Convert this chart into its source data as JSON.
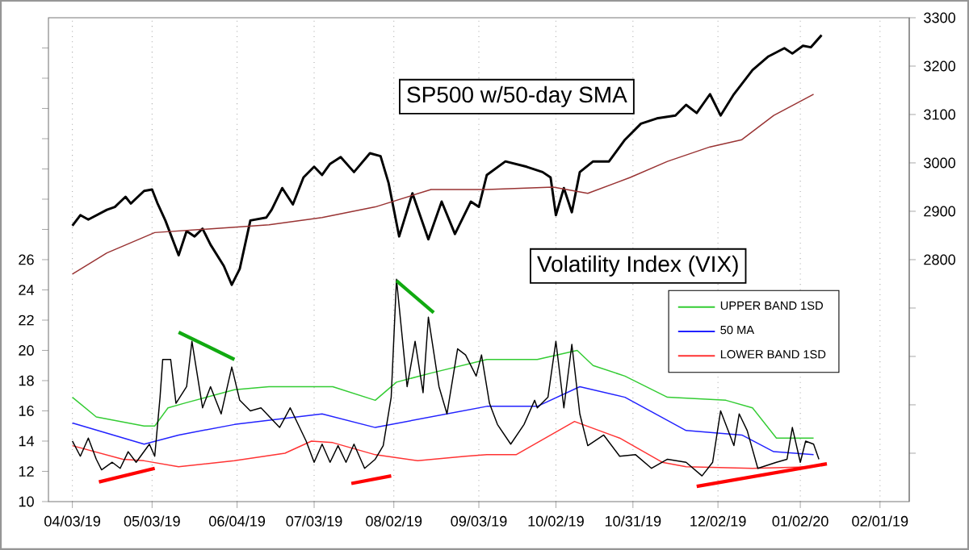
{
  "chart_data": {
    "type": "line",
    "title": "SP500 w/50-day SMA",
    "annotations": [
      "Volatility Index (VIX)"
    ],
    "xlim": [
      "2019-03-25",
      "2020-02-12"
    ],
    "xticks": [
      {
        "value": "2019-04-03",
        "label": "04/03/19"
      },
      {
        "value": "2019-05-03",
        "label": "05/03/19"
      },
      {
        "value": "2019-06-04",
        "label": "06/04/19"
      },
      {
        "value": "2019-07-03",
        "label": "07/03/19"
      },
      {
        "value": "2019-08-02",
        "label": "08/02/19"
      },
      {
        "value": "2019-09-03",
        "label": "09/03/19"
      },
      {
        "value": "2019-10-02",
        "label": "10/02/19"
      },
      {
        "value": "2019-10-31",
        "label": "10/31/19"
      },
      {
        "value": "2019-12-02",
        "label": "12/02/19"
      },
      {
        "value": "2020-01-02",
        "label": "01/02/20"
      },
      {
        "value": "2020-02-01",
        "label": "02/01/19"
      }
    ],
    "ylim": [
      10,
      42
    ],
    "yticks": [
      10,
      12,
      14,
      16,
      18,
      20,
      22,
      24,
      26,
      {
        "value": 28,
        "label": null
      },
      {
        "value": 30,
        "label": null
      },
      {
        "value": 32,
        "label": null
      },
      {
        "value": 34,
        "label": null
      },
      {
        "value": 36,
        "label": null
      },
      {
        "value": 38,
        "label": null
      },
      {
        "value": 40,
        "label": null
      }
    ],
    "y2lim": [
      2300,
      3300
    ],
    "y2ticks": [
      {
        "value": 2400,
        "label": null
      },
      {
        "value": 2500,
        "label": null
      },
      {
        "value": 2600,
        "label": null
      },
      {
        "value": 2700,
        "label": null
      },
      2800,
      2900,
      3000,
      3100,
      3200,
      3300
    ],
    "grid": "x",
    "legend": "right",
    "marker": "none",
    "line_style": "solid",
    "series": [
      {
        "name": "UPPER BAND 1SD",
        "color": "#33cc33",
        "x": [
          "2019-04-03",
          "2019-04-12",
          "2019-04-30",
          "2019-05-04",
          "2019-05-09",
          "2019-05-15",
          "2019-06-03",
          "2019-06-16",
          "2019-07-10",
          "2019-07-26",
          "2019-08-03",
          "2019-08-16",
          "2019-09-06",
          "2019-09-25",
          "2019-10-10",
          "2019-10-16",
          "2019-10-28",
          "2019-11-13",
          "2019-12-05",
          "2019-12-15",
          "2019-12-24",
          "2020-01-07"
        ],
        "values": [
          16.9,
          15.6,
          15.0,
          15.0,
          16.2,
          16.5,
          17.4,
          17.6,
          17.6,
          16.7,
          17.9,
          18.5,
          19.4,
          19.4,
          20.0,
          19.0,
          18.3,
          16.9,
          16.7,
          16.2,
          14.2,
          14.2
        ]
      },
      {
        "name": "50 MA",
        "color": "#2222ff",
        "x": [
          "2019-04-03",
          "2019-04-30",
          "2019-05-13",
          "2019-06-03",
          "2019-07-06",
          "2019-07-26",
          "2019-08-16",
          "2019-09-06",
          "2019-09-25",
          "2019-10-11",
          "2019-10-28",
          "2019-11-20",
          "2019-12-11",
          "2019-12-23",
          "2020-01-07"
        ],
        "values": [
          15.2,
          13.8,
          14.4,
          15.1,
          15.8,
          14.9,
          15.6,
          16.3,
          16.3,
          17.6,
          16.9,
          14.7,
          14.4,
          13.3,
          13.1
        ]
      },
      {
        "name": "LOWER BAND 1SD",
        "color": "#ff3333",
        "x": [
          "2019-04-03",
          "2019-04-22",
          "2019-04-30",
          "2019-05-13",
          "2019-06-03",
          "2019-06-22",
          "2019-07-02",
          "2019-07-10",
          "2019-07-26",
          "2019-08-11",
          "2019-08-29",
          "2019-09-06",
          "2019-09-17",
          "2019-10-09",
          "2019-10-26",
          "2019-11-11",
          "2019-11-20",
          "2019-12-15",
          "2020-01-07"
        ],
        "values": [
          13.7,
          12.8,
          12.7,
          12.3,
          12.7,
          13.2,
          14.0,
          13.9,
          13.1,
          12.7,
          13.0,
          13.1,
          13.1,
          15.3,
          14.2,
          12.6,
          12.3,
          12.2,
          12.3
        ]
      },
      {
        "color": "#000000",
        "x": [
          "2019-04-03",
          "2019-04-06",
          "2019-04-09",
          "2019-04-12",
          "2019-04-14",
          "2019-04-18",
          "2019-04-21",
          "2019-04-24",
          "2019-04-27",
          "2019-05-02",
          "2019-05-04",
          "2019-05-06",
          "2019-05-07",
          "2019-05-10",
          "2019-05-12",
          "2019-05-16",
          "2019-05-18",
          "2019-05-22",
          "2019-05-25",
          "2019-05-29",
          "2019-06-02",
          "2019-06-05",
          "2019-06-09",
          "2019-06-13",
          "2019-06-20",
          "2019-06-24",
          "2019-06-30",
          "2019-07-03",
          "2019-07-06",
          "2019-07-09",
          "2019-07-12",
          "2019-07-15",
          "2019-07-18",
          "2019-07-22",
          "2019-07-26",
          "2019-07-29",
          "2019-08-01",
          "2019-08-03",
          "2019-08-07",
          "2019-08-10",
          "2019-08-13",
          "2019-08-15",
          "2019-08-19",
          "2019-08-22",
          "2019-08-26",
          "2019-08-29",
          "2019-09-02",
          "2019-09-04",
          "2019-09-07",
          "2019-09-10",
          "2019-09-15",
          "2019-09-20",
          "2019-09-24",
          "2019-09-25",
          "2019-09-29",
          "2019-10-02",
          "2019-10-05",
          "2019-10-08",
          "2019-10-11",
          "2019-10-14",
          "2019-10-20",
          "2019-10-26",
          "2019-11-01",
          "2019-11-07",
          "2019-11-13",
          "2019-11-20",
          "2019-11-26",
          "2019-11-30",
          "2019-12-03",
          "2019-12-08",
          "2019-12-10",
          "2019-12-13",
          "2019-12-17",
          "2019-12-24",
          "2019-12-28",
          "2019-12-30",
          "2020-01-02",
          "2020-01-04",
          "2020-01-07",
          "2020-01-09"
        ],
        "values": [
          14.0,
          13.0,
          14.2,
          12.8,
          12.1,
          12.6,
          12.2,
          13.3,
          12.6,
          13.8,
          13.0,
          16.9,
          19.4,
          19.4,
          16.5,
          17.6,
          20.6,
          16.2,
          17.6,
          15.8,
          18.9,
          16.7,
          16.0,
          16.2,
          14.9,
          16.2,
          14.0,
          12.6,
          13.8,
          12.6,
          13.7,
          12.6,
          13.8,
          12.2,
          12.8,
          13.7,
          16.9,
          24.7,
          17.6,
          20.6,
          17.2,
          22.2,
          17.6,
          15.8,
          20.1,
          19.7,
          18.3,
          19.7,
          16.5,
          15.1,
          13.8,
          15.1,
          16.7,
          16.2,
          16.9,
          20.6,
          16.2,
          20.4,
          15.8,
          13.7,
          14.4,
          13.0,
          13.1,
          12.2,
          12.8,
          12.6,
          11.7,
          12.6,
          16.0,
          13.7,
          15.8,
          14.7,
          12.2,
          12.6,
          12.8,
          14.9,
          12.6,
          14.0,
          13.8,
          12.8
        ]
      },
      {
        "color": "#000000",
        "axis": "y2",
        "x": [
          "2019-04-03",
          "2019-04-06",
          "2019-04-09",
          "2019-04-16",
          "2019-04-19",
          "2019-04-23",
          "2019-04-25",
          "2019-04-30",
          "2019-05-03",
          "2019-05-05",
          "2019-05-08",
          "2019-05-13",
          "2019-05-16",
          "2019-05-19",
          "2019-05-22",
          "2019-05-25",
          "2019-05-30",
          "2019-06-02",
          "2019-06-05",
          "2019-06-09",
          "2019-06-15",
          "2019-06-17",
          "2019-06-21",
          "2019-06-25",
          "2019-06-29",
          "2019-07-03",
          "2019-07-06",
          "2019-07-09",
          "2019-07-13",
          "2019-07-18",
          "2019-07-24",
          "2019-07-28",
          "2019-07-31",
          "2019-08-04",
          "2019-08-09",
          "2019-08-15",
          "2019-08-20",
          "2019-08-25",
          "2019-08-31",
          "2019-09-03",
          "2019-09-06",
          "2019-09-13",
          "2019-09-21",
          "2019-09-27",
          "2019-09-30",
          "2019-10-02",
          "2019-10-05",
          "2019-10-08",
          "2019-10-11",
          "2019-10-16",
          "2019-10-22",
          "2019-10-28",
          "2019-11-03",
          "2019-11-09",
          "2019-11-16",
          "2019-11-20",
          "2019-11-24",
          "2019-11-29",
          "2019-12-03",
          "2019-12-08",
          "2019-12-15",
          "2019-12-21",
          "2019-12-27",
          "2019-12-30",
          "2020-01-03",
          "2020-01-06",
          "2020-01-10"
        ],
        "values": [
          2870,
          2892,
          2883,
          2903,
          2909,
          2930,
          2916,
          2942,
          2945,
          2917,
          2881,
          2809,
          2859,
          2848,
          2864,
          2831,
          2787,
          2748,
          2781,
          2881,
          2887,
          2903,
          2948,
          2914,
          2970,
          2992,
          2975,
          2998,
          3012,
          2981,
          3020,
          3014,
          2959,
          2848,
          2937,
          2842,
          2920,
          2853,
          2920,
          2909,
          2975,
          3003,
          2992,
          2981,
          2970,
          2892,
          2948,
          2898,
          2981,
          3003,
          3003,
          3048,
          3081,
          3092,
          3098,
          3120,
          3103,
          3142,
          3098,
          3142,
          3192,
          3220,
          3237,
          3226,
          3242,
          3239,
          3264
        ]
      },
      {
        "color": "#993333",
        "axis": "y2",
        "x": [
          "2019-04-03",
          "2019-04-16",
          "2019-05-04",
          "2019-06-03",
          "2019-06-16",
          "2019-07-06",
          "2019-07-26",
          "2019-08-16",
          "2019-09-06",
          "2019-10-01",
          "2019-10-14",
          "2019-10-30",
          "2019-11-13",
          "2019-11-29",
          "2019-12-11",
          "2019-12-23",
          "2020-01-07"
        ],
        "values": [
          2770,
          2814,
          2856,
          2867,
          2872,
          2887,
          2909,
          2945,
          2945,
          2950,
          2937,
          2970,
          3003,
          3033,
          3048,
          3098,
          3142
        ]
      },
      {
        "color": "#ff0000",
        "x": [
          "2019-04-13",
          "2019-05-04"
        ],
        "values": [
          11.3,
          12.2
        ]
      },
      {
        "color": "#11aa11",
        "x": [
          "2019-05-13",
          "2019-06-03"
        ],
        "values": [
          21.2,
          19.4
        ]
      },
      {
        "color": "#ff0000",
        "x": [
          "2019-07-17",
          "2019-08-01"
        ],
        "values": [
          11.2,
          11.7
        ]
      },
      {
        "color": "#11aa11",
        "x": [
          "2019-08-03",
          "2019-08-17"
        ],
        "values": [
          24.6,
          22.5
        ]
      },
      {
        "color": "#ff0000",
        "x": [
          "2019-11-24",
          "2020-01-12"
        ],
        "values": [
          11.0,
          12.5
        ]
      }
    ]
  }
}
